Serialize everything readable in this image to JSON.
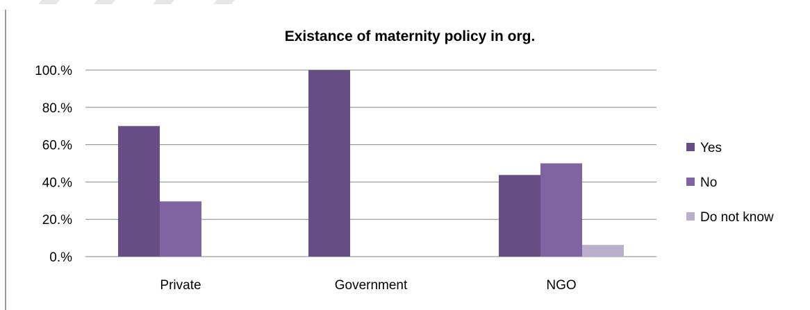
{
  "chart_data": {
    "type": "bar",
    "title": "Existance of maternity policy in org.",
    "xlabel": "",
    "ylabel": "",
    "categories": [
      "Private",
      "Government",
      "NGO"
    ],
    "series": [
      {
        "name": "Yes",
        "values": [
          70,
          100,
          43.75
        ],
        "color": "#674F86"
      },
      {
        "name": "No",
        "values": [
          29.6,
          0,
          50
        ],
        "color": "#8064A2"
      },
      {
        "name": "Do not know",
        "values": [
          0,
          0,
          6.25
        ],
        "color": "#BCAFCE"
      }
    ],
    "ylim": [
      0,
      100
    ],
    "yticks": [
      0,
      20,
      40,
      60,
      80,
      100
    ],
    "ytick_labels": [
      "0.%",
      "20.%",
      "40.%",
      "60.%",
      "80.%",
      "100.%"
    ],
    "grid": true,
    "legend_position": "right"
  }
}
